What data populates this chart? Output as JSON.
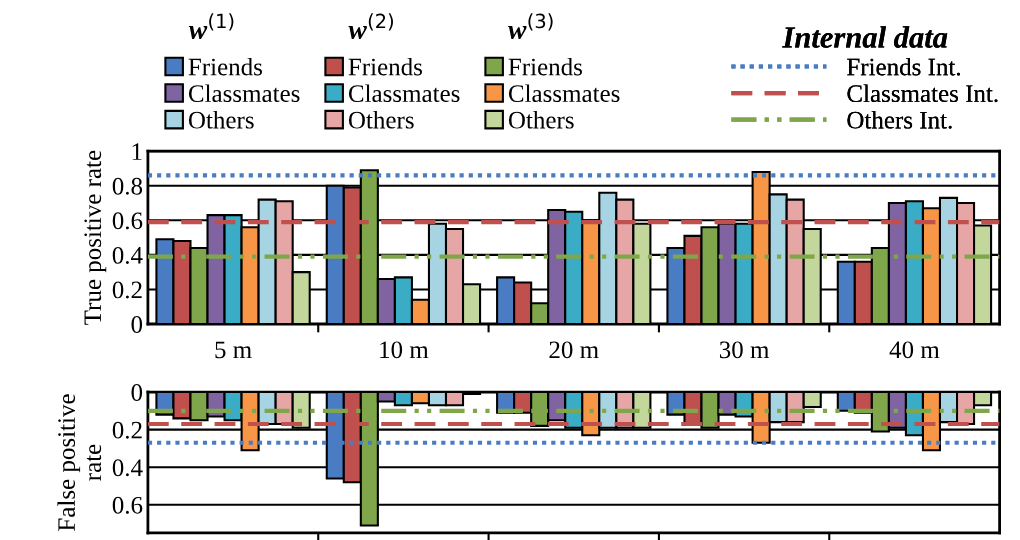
{
  "chart_data": [
    {
      "type": "bar",
      "ylabel": "True positive rate",
      "legend_title": "Internal data",
      "legend": "top",
      "annotations": [
        "w$^{(1)}$",
        "w$^{(2)}$",
        "w$^{(3)}$"
      ],
      "categories": [
        "5 m",
        "10 m",
        "20 m",
        "30 m",
        "40 m"
      ],
      "series": [
        {
          "name": "Friends",
          "color": "#4a7cc4",
          "values": [
            0.49,
            0.8,
            0.27,
            0.44,
            0.36
          ]
        },
        {
          "name": "Friends",
          "color": "#c0504d",
          "values": [
            0.48,
            0.79,
            0.24,
            0.51,
            0.36
          ]
        },
        {
          "name": "Friends",
          "color": "#7fa64a",
          "values": [
            0.44,
            0.89,
            0.12,
            0.56,
            0.44
          ]
        },
        {
          "name": "Classmates",
          "color": "#8064a2",
          "values": [
            0.63,
            0.26,
            0.66,
            0.58,
            0.7
          ]
        },
        {
          "name": "Classmates",
          "color": "#3aacc6",
          "values": [
            0.63,
            0.27,
            0.65,
            0.58,
            0.71
          ]
        },
        {
          "name": "Classmates",
          "color": "#f79646",
          "values": [
            0.56,
            0.14,
            0.6,
            0.88,
            0.67
          ]
        },
        {
          "name": "Others",
          "color": "#a6d4e2",
          "values": [
            0.72,
            0.58,
            0.76,
            0.75,
            0.73
          ]
        },
        {
          "name": "Others",
          "color": "#e6a6a6",
          "values": [
            0.71,
            0.55,
            0.72,
            0.72,
            0.7
          ]
        },
        {
          "name": "Others",
          "color": "#c3d69b",
          "values": [
            0.3,
            0.23,
            0.58,
            0.55,
            0.57
          ]
        }
      ],
      "ylim": [
        0,
        1
      ],
      "yticks": [
        0,
        0.2,
        0.4,
        0.6,
        0.8,
        1
      ],
      "grid": "y",
      "ref_lines": [
        {
          "axis": "y",
          "value": 0.86,
          "label": "Friends Int.",
          "color": "#4a7cc4",
          "line_style": "dotted"
        },
        {
          "axis": "y",
          "value": 0.59,
          "label": "Classmates Int.",
          "color": "#c0504d",
          "line_style": "dashed"
        },
        {
          "axis": "y",
          "value": 0.39,
          "label": "Others Int.",
          "color": "#7fa64a",
          "line_style": "dashdot"
        }
      ]
    },
    {
      "type": "bar",
      "ylabel": "False positive\nrate",
      "tick_labels": "y",
      "series": [
        {
          "color": "#4a7cc4",
          "values": [
            0.12,
            0.46,
            0.11,
            0.12,
            0.1
          ]
        },
        {
          "color": "#c0504d",
          "values": [
            0.14,
            0.48,
            0.11,
            0.17,
            0.11
          ]
        },
        {
          "color": "#7fa64a",
          "values": [
            0.15,
            0.71,
            0.18,
            0.19,
            0.21
          ]
        },
        {
          "color": "#8064a2",
          "values": [
            0.13,
            0.05,
            0.15,
            0.12,
            0.19
          ]
        },
        {
          "color": "#3aacc6",
          "values": [
            0.15,
            0.07,
            0.19,
            0.13,
            0.23
          ]
        },
        {
          "color": "#f79646",
          "values": [
            0.31,
            0.06,
            0.23,
            0.27,
            0.31
          ]
        },
        {
          "color": "#a6d4e2",
          "values": [
            0.17,
            0.07,
            0.19,
            0.16,
            0.16
          ]
        },
        {
          "color": "#e6a6a6",
          "values": [
            0.17,
            0.07,
            0.19,
            0.16,
            0.17
          ]
        },
        {
          "color": "#c3d69b",
          "values": [
            0.19,
            0.01,
            0.19,
            0.08,
            0.07
          ]
        }
      ],
      "ylim": [
        0.75,
        0
      ],
      "yticks": [
        0,
        0.2,
        0.4,
        0.6
      ],
      "grid": "y",
      "ref_lines": [
        {
          "axis": "y",
          "value": 0.27,
          "color": "#4a7cc4",
          "line_style": "dotted"
        },
        {
          "axis": "y",
          "value": 0.17,
          "color": "#c0504d",
          "line_style": "dashed"
        },
        {
          "axis": "y",
          "value": 0.1,
          "color": "#7fa64a",
          "line_style": "dashdot"
        }
      ]
    }
  ]
}
